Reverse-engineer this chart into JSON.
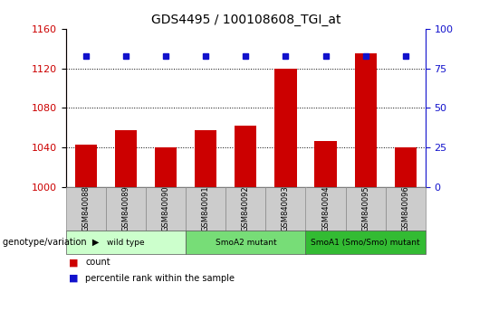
{
  "title": "GDS4495 / 100108608_TGI_at",
  "samples": [
    "GSM840088",
    "GSM840089",
    "GSM840090",
    "GSM840091",
    "GSM840092",
    "GSM840093",
    "GSM840094",
    "GSM840095",
    "GSM840096"
  ],
  "counts": [
    1043,
    1058,
    1040,
    1058,
    1062,
    1120,
    1047,
    1135,
    1040
  ],
  "percentiles": [
    83,
    83,
    83,
    83,
    83,
    83,
    83,
    83,
    83
  ],
  "ylim_left": [
    1000,
    1160
  ],
  "ylim_right": [
    0,
    100
  ],
  "yticks_left": [
    1000,
    1040,
    1080,
    1120,
    1160
  ],
  "yticks_right": [
    0,
    25,
    50,
    75,
    100
  ],
  "groups": [
    {
      "label": "wild type",
      "indices": [
        0,
        1,
        2
      ],
      "color": "#ccffcc"
    },
    {
      "label": "SmoA2 mutant",
      "indices": [
        3,
        4,
        5
      ],
      "color": "#77dd77"
    },
    {
      "label": "SmoA1 (Smo/Smo) mutant",
      "indices": [
        6,
        7,
        8
      ],
      "color": "#33bb33"
    }
  ],
  "bar_color": "#cc0000",
  "dot_color": "#1111cc",
  "bar_width": 0.55,
  "legend_label_count": "count",
  "legend_label_percentile": "percentile rank within the sample",
  "xlabel": "genotype/variation",
  "tick_label_color_left": "#cc0000",
  "tick_label_color_right": "#1111cc",
  "label_box_color": "#cccccc",
  "label_box_edge": "#888888"
}
